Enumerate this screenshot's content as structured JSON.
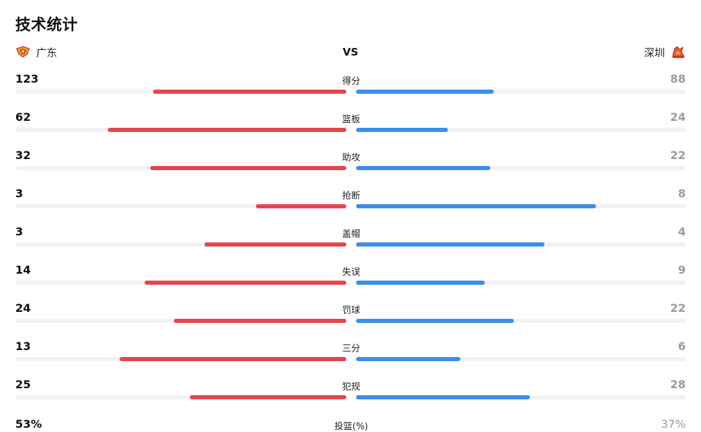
{
  "header": {
    "title": "技术统计"
  },
  "teams": {
    "home": {
      "name": "广东",
      "logo_icon": "guangdong-logo-icon"
    },
    "vs_label": "VS",
    "away": {
      "name": "深圳",
      "logo_icon": "shenzhen-logo-icon"
    }
  },
  "colors": {
    "home_bar": "#e2474c",
    "away_bar": "#3b8fe9",
    "track": "#f2f2f4",
    "away_text": "#9b9b9b"
  },
  "stats": [
    {
      "label": "得分",
      "home": "123",
      "away": "88",
      "home_share": 0.583,
      "away_share": 0.417
    },
    {
      "label": "篮板",
      "home": "62",
      "away": "24",
      "home_share": 0.721,
      "away_share": 0.279
    },
    {
      "label": "助攻",
      "home": "32",
      "away": "22",
      "home_share": 0.593,
      "away_share": 0.407
    },
    {
      "label": "抢断",
      "home": "3",
      "away": "8",
      "home_share": 0.273,
      "away_share": 0.727
    },
    {
      "label": "盖帽",
      "home": "3",
      "away": "4",
      "home_share": 0.429,
      "away_share": 0.571
    },
    {
      "label": "失误",
      "home": "14",
      "away": "9",
      "home_share": 0.609,
      "away_share": 0.391
    },
    {
      "label": "罚球",
      "home": "24",
      "away": "22",
      "home_share": 0.522,
      "away_share": 0.478
    },
    {
      "label": "三分",
      "home": "13",
      "away": "6",
      "home_share": 0.684,
      "away_share": 0.316
    },
    {
      "label": "犯规",
      "home": "25",
      "away": "28",
      "home_share": 0.472,
      "away_share": 0.528
    }
  ],
  "field_goal": {
    "label": "投篮(%)",
    "home": "53%",
    "away": "37%"
  }
}
